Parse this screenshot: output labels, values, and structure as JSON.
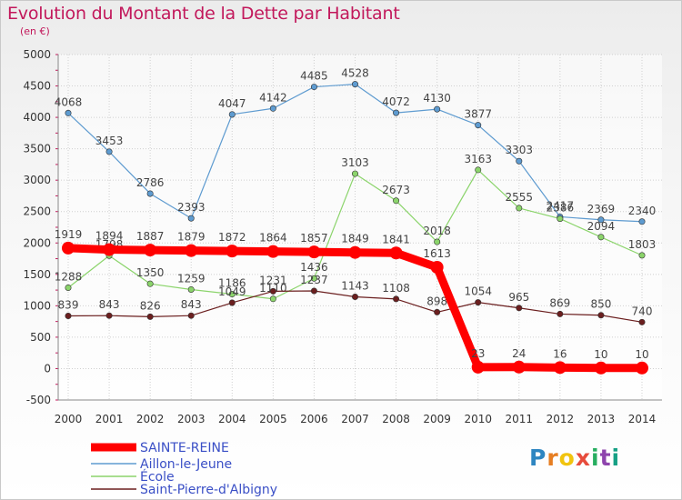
{
  "header": {
    "title": "Evolution du Montant de la Dette par Habitant",
    "subtitle": "(en €)"
  },
  "logo": {
    "letters": [
      "P",
      "r",
      "o",
      "x",
      "i",
      "t",
      "i"
    ],
    "colors": [
      "#2e86c1",
      "#e67e22",
      "#f1c40f",
      "#e74c3c",
      "#27ae60",
      "#8e44ad",
      "#16a085"
    ]
  },
  "chart_data": {
    "type": "line",
    "title": "Evolution du Montant de la Dette par Habitant",
    "subtitle": "(en €)",
    "xlabel": "",
    "ylabel": "",
    "x": [
      2000,
      2001,
      2002,
      2003,
      2004,
      2005,
      2006,
      2007,
      2008,
      2009,
      2010,
      2011,
      2012,
      2013,
      2014
    ],
    "ylim": [
      -500,
      5000
    ],
    "yticks": [
      -500,
      0,
      500,
      1000,
      1500,
      2000,
      2500,
      3000,
      3500,
      4000,
      4500,
      5000
    ],
    "grid": true,
    "legend_position": "bottom-left",
    "series": [
      {
        "name": "SAINTE-REINE",
        "color": "#ff0000",
        "values": [
          1919,
          1894,
          1887,
          1879,
          1872,
          1864,
          1857,
          1849,
          1841,
          1613,
          23,
          24,
          16,
          10,
          10
        ]
      },
      {
        "name": "Aillon-le-Jeune",
        "color": "#5e9bd0",
        "values": [
          4068,
          3453,
          2786,
          2393,
          4047,
          4142,
          4485,
          4528,
          4072,
          4130,
          3877,
          3303,
          2417,
          2369,
          2340
        ]
      },
      {
        "name": "École",
        "color": "#8bd46b",
        "values": [
          1288,
          1798,
          1350,
          1259,
          1186,
          1110,
          1436,
          3103,
          2673,
          2018,
          3163,
          2555,
          2386,
          2094,
          1803
        ]
      },
      {
        "name": "Saint-Pierre-d'Albigny",
        "color": "#6b1f1f",
        "values": [
          839,
          843,
          826,
          843,
          1049,
          1231,
          1237,
          1143,
          1108,
          898,
          1054,
          965,
          869,
          850,
          740
        ]
      }
    ]
  }
}
